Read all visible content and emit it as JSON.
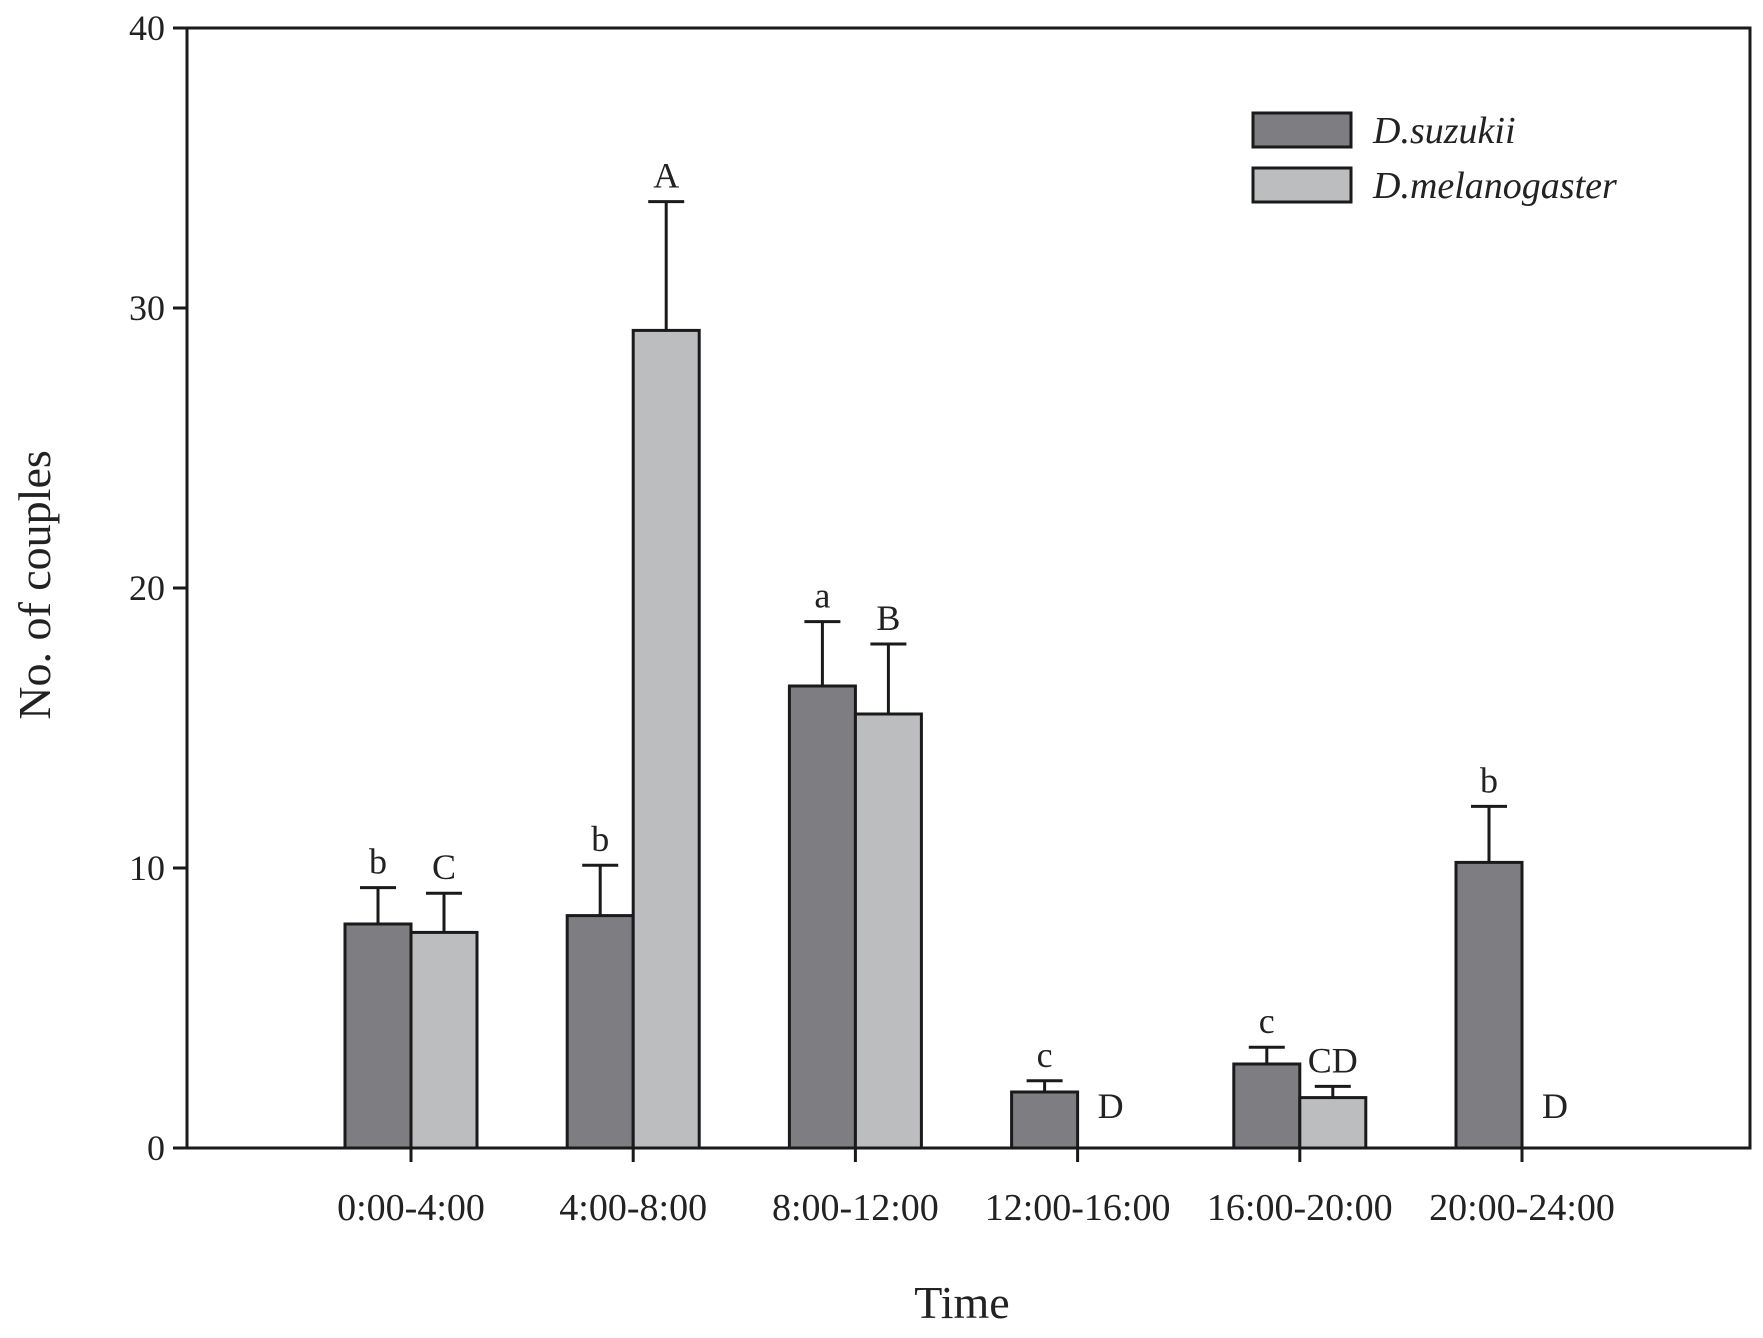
{
  "colors": {
    "dark_bar": "#7e7e82",
    "light_bar": "#bcbdbf",
    "stroke": "#1a1a1a"
  },
  "chart_data": {
    "type": "bar",
    "xlabel": "Time",
    "ylabel": "No. of couples",
    "ylim": [
      0,
      40
    ],
    "yticks": [
      0,
      10,
      20,
      30,
      40
    ],
    "legend_position": "top-right",
    "categories": [
      "0:00-4:00",
      "4:00-8:00",
      "8:00-12:00",
      "12:00-16:00",
      "16:00-20:00",
      "20:00-24:00"
    ],
    "series": [
      {
        "name": "D.suzukii",
        "color": "#7e7e82",
        "values": [
          8.0,
          8.3,
          16.5,
          2.0,
          3.0,
          10.2
        ],
        "errors": [
          1.3,
          1.8,
          2.3,
          0.4,
          0.6,
          2.0
        ],
        "significance": [
          "b",
          "b",
          "a",
          "c",
          "c",
          "b"
        ]
      },
      {
        "name": "D.melanogaster",
        "color": "#bcbdbf",
        "values": [
          7.7,
          29.2,
          15.5,
          0,
          1.8,
          0
        ],
        "errors": [
          1.4,
          4.6,
          2.5,
          0,
          0.4,
          0
        ],
        "significance": [
          "C",
          "A",
          "B",
          "D",
          "CD",
          "D"
        ]
      }
    ]
  }
}
